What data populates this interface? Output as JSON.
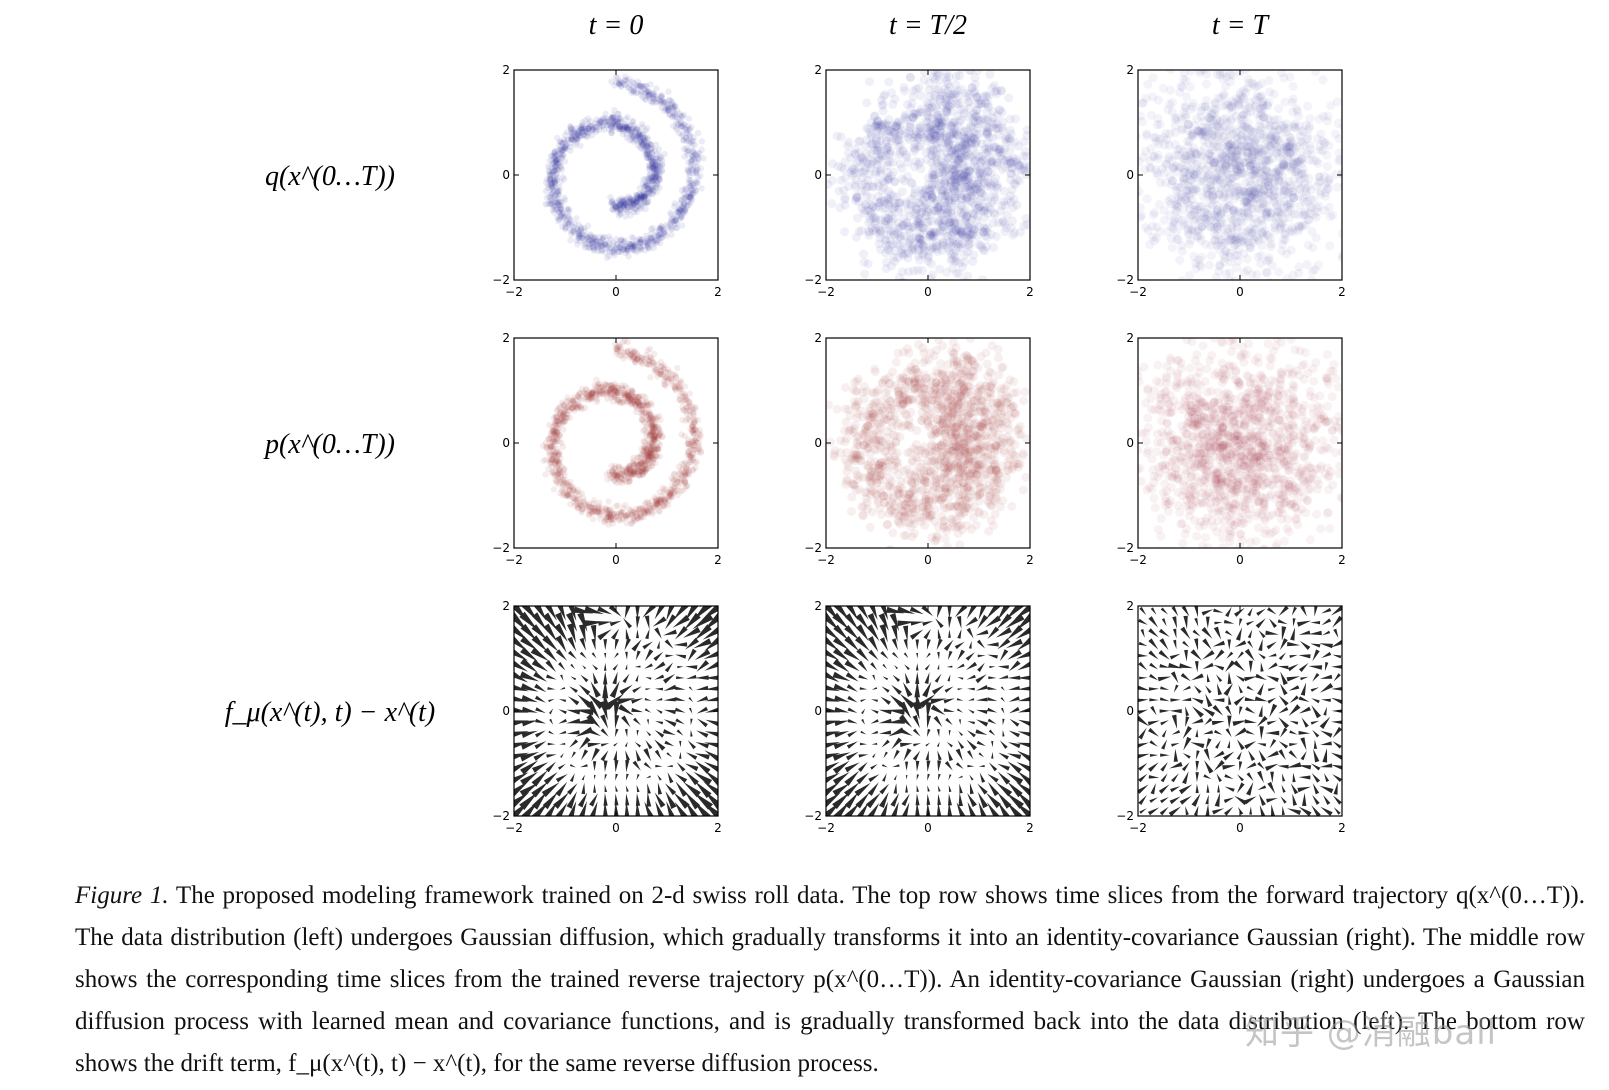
{
  "columns": [
    {
      "title": "t = 0"
    },
    {
      "title": "t = T/2"
    },
    {
      "title": "t = T"
    }
  ],
  "rows": [
    {
      "label": "q(x^(0…T))",
      "kind": "forward",
      "color": "#2b2f9a"
    },
    {
      "label": "p(x^(0…T))",
      "kind": "reverse",
      "color": "#a0282b"
    },
    {
      "label": "f_μ(x^(t), t) − x^(t)",
      "kind": "drift",
      "color": "#222222"
    }
  ],
  "chart_data": [
    {
      "type": "scatter",
      "row": "forward",
      "column": "t = 0",
      "xlim": [
        -2,
        2
      ],
      "ylim": [
        -2,
        2
      ],
      "xticks": [
        "−2",
        "0",
        "2"
      ],
      "yticks": [
        "−2",
        "0",
        "2"
      ],
      "noise": 0.0
    },
    {
      "type": "scatter",
      "row": "forward",
      "column": "t = T/2",
      "xlim": [
        -2,
        2
      ],
      "ylim": [
        -2,
        2
      ],
      "xticks": [
        "−2",
        "0",
        "2"
      ],
      "yticks": [
        "−2",
        "0",
        "2"
      ],
      "noise": 0.35
    },
    {
      "type": "scatter",
      "row": "forward",
      "column": "t = T",
      "xlim": [
        -2,
        2
      ],
      "ylim": [
        -2,
        2
      ],
      "xticks": [
        "−2",
        "0",
        "2"
      ],
      "yticks": [
        "−2",
        "0",
        "2"
      ],
      "noise": 1.0
    },
    {
      "type": "scatter",
      "row": "reverse",
      "column": "t = 0",
      "xlim": [
        -2,
        2
      ],
      "ylim": [
        -2,
        2
      ],
      "xticks": [
        "−2",
        "0",
        "2"
      ],
      "yticks": [
        "−2",
        "0",
        "2"
      ],
      "noise": 0.0
    },
    {
      "type": "scatter",
      "row": "reverse",
      "column": "t = T/2",
      "xlim": [
        -2,
        2
      ],
      "ylim": [
        -2,
        2
      ],
      "xticks": [
        "−2",
        "0",
        "2"
      ],
      "yticks": [
        "−2",
        "0",
        "2"
      ],
      "noise": 0.35
    },
    {
      "type": "scatter",
      "row": "reverse",
      "column": "t = T",
      "xlim": [
        -2,
        2
      ],
      "ylim": [
        -2,
        2
      ],
      "xticks": [
        "−2",
        "0",
        "2"
      ],
      "yticks": [
        "−2",
        "0",
        "2"
      ],
      "noise": 1.0
    },
    {
      "type": "quiver",
      "row": "drift",
      "column": "t = 0",
      "xlim": [
        -2,
        2
      ],
      "ylim": [
        -2,
        2
      ],
      "xticks": [
        "−2",
        "0",
        "2"
      ],
      "yticks": [
        "−2",
        "0",
        "2"
      ],
      "strength": 1.0
    },
    {
      "type": "quiver",
      "row": "drift",
      "column": "t = T/2",
      "xlim": [
        -2,
        2
      ],
      "ylim": [
        -2,
        2
      ],
      "xticks": [
        "−2",
        "0",
        "2"
      ],
      "yticks": [
        "−2",
        "0",
        "2"
      ],
      "strength": 0.9
    },
    {
      "type": "quiver",
      "row": "drift",
      "column": "t = T",
      "xlim": [
        -2,
        2
      ],
      "ylim": [
        -2,
        2
      ],
      "xticks": [
        "−2",
        "0",
        "2"
      ],
      "yticks": [
        "−2",
        "0",
        "2"
      ],
      "strength": 0.35
    }
  ],
  "caption": {
    "label": "Figure 1.",
    "part1": " The proposed modeling framework trained on 2-d swiss roll data. The top row shows time slices from the forward trajectory ",
    "q_expr": "q(x^(0…T))",
    "part2": ". The data distribution (left) undergoes Gaussian diffusion, which gradually transforms it into an identity-covariance Gaussian (right). The middle row shows the corresponding time slices from the trained reverse trajectory ",
    "p_expr": "p(x^(0…T))",
    "part3": ". An identity-covariance Gaussian (right) undergoes a Gaussian diffusion process with learned mean and covariance functions, and is gradually transformed back into the data distribution (left). The bottom row shows the drift term, ",
    "f_expr": "f_μ(x^(t), t) − x^(t)",
    "part4": ", for the same reverse diffusion process."
  },
  "watermark": "知乎 @消融ball"
}
